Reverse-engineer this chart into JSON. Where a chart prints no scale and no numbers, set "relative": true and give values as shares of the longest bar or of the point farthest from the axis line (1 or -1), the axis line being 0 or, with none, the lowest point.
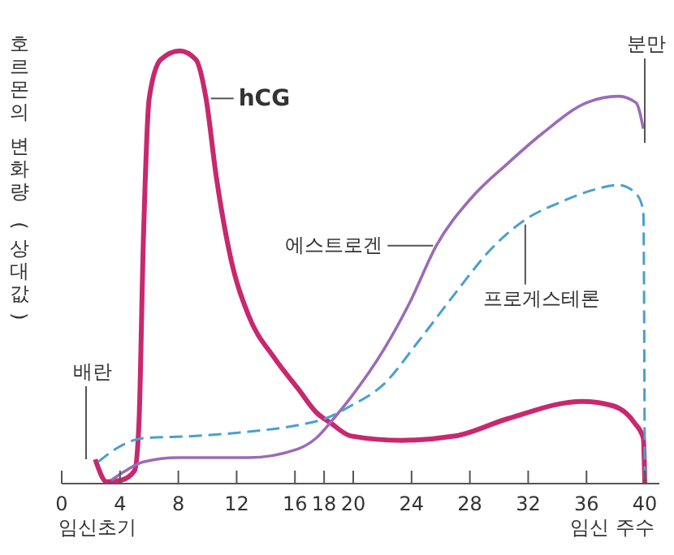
{
  "chart_data": {
    "type": "line",
    "ylabel": "호르몬의 변화량 (상대값)",
    "xlabel": "임신 주수",
    "relative": true,
    "xlim": [
      0,
      41
    ],
    "xticks": [
      0,
      4,
      8,
      12,
      16,
      18,
      20,
      24,
      28,
      32,
      36,
      40
    ],
    "grid": false,
    "marker": "none",
    "annotations": [
      "임신초기",
      "배란",
      "분만"
    ],
    "series": [
      {
        "name": "hCG",
        "color": "#c8286e",
        "line_style": "solid",
        "x": [
          2.3,
          3.1,
          4.1,
          5.0,
          5.3,
          5.6,
          6.0,
          6.8,
          8.1,
          9.2,
          9.9,
          10.6,
          11.6,
          12.8,
          14.6,
          16.2,
          17.45,
          18.45,
          19.85,
          23.3,
          27.0,
          30.6,
          35.7,
          37.8,
          39.3,
          39.9,
          40.0
        ],
        "values": [
          0.056,
          0.004,
          0.008,
          0.03,
          0.14,
          0.56,
          0.89,
          0.98,
          1.0,
          0.98,
          0.89,
          0.71,
          0.52,
          0.39,
          0.29,
          0.22,
          0.165,
          0.14,
          0.11,
          0.1,
          0.11,
          0.15,
          0.19,
          0.18,
          0.14,
          0.105,
          0
        ]
      },
      {
        "name": "에스트로겐",
        "color": "#9b6bb8",
        "line_style": "solid",
        "x": [
          3.4,
          4.4,
          5.6,
          8.0,
          12.8,
          16.2,
          17.45,
          18.65,
          19.85,
          22.1,
          23.9,
          25.7,
          28.1,
          30.6,
          33.0,
          36.0,
          38.2,
          39.4,
          39.9
        ],
        "values": [
          0.008,
          0.03,
          0.05,
          0.06,
          0.06,
          0.08,
          0.105,
          0.15,
          0.2,
          0.31,
          0.42,
          0.55,
          0.66,
          0.74,
          0.81,
          0.88,
          0.895,
          0.88,
          0.82
        ]
      },
      {
        "name": "프로게스테론",
        "color": "#4a9fd0",
        "line_style": "dashed",
        "x": [
          2.5,
          3.7,
          5.6,
          9.2,
          12.8,
          16.2,
          18.05,
          19.85,
          22.1,
          24.5,
          27.0,
          29.4,
          31.8,
          34.2,
          36.6,
          38.2,
          39.4,
          39.9,
          40.0
        ],
        "values": [
          0.05,
          0.08,
          0.105,
          0.11,
          0.12,
          0.135,
          0.15,
          0.18,
          0.23,
          0.33,
          0.44,
          0.54,
          0.61,
          0.65,
          0.68,
          0.69,
          0.67,
          0.63,
          0
        ]
      }
    ]
  }
}
